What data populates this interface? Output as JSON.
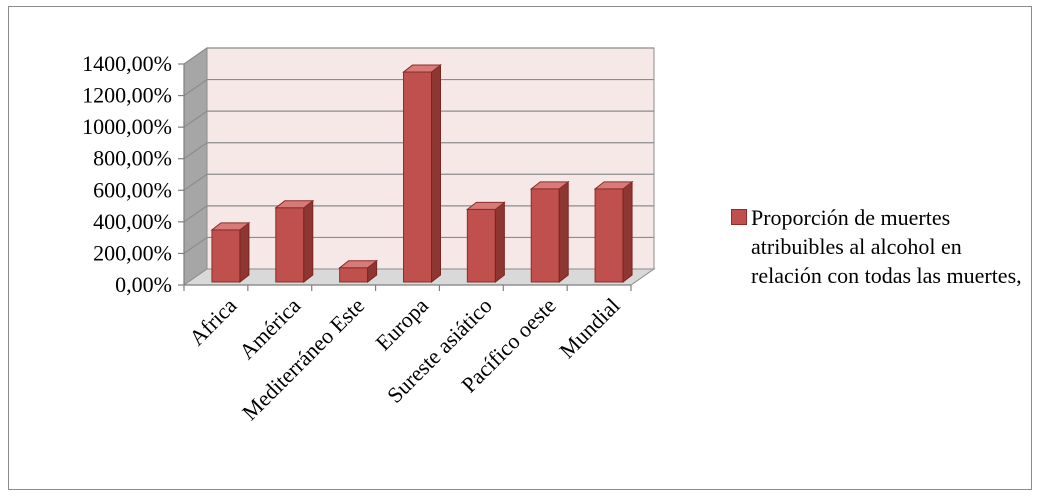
{
  "chart_data": {
    "type": "bar",
    "title": "",
    "xlabel": "",
    "ylabel": "",
    "categories": [
      "Africa",
      "América",
      "Mediterráneo Este",
      "Europa",
      "Sureste asiático",
      "Pacífico oeste",
      "Mundial"
    ],
    "series": [
      {
        "name": "Proporción de muertes atribuibles al alcohol en relación con todas las muertes,",
        "values": [
          330,
          470,
          90,
          1330,
          460,
          590,
          590
        ]
      }
    ],
    "ylim": [
      0,
      1400
    ],
    "yticks": [
      "0,00%",
      "200,00%",
      "400,00%",
      "600,00%",
      "800,00%",
      "1000,00%",
      "1200,00%",
      "1400,00%"
    ],
    "grid": true,
    "legend_position": "right",
    "colors": {
      "bar_front": "#c0504d",
      "bar_side": "#8e3632",
      "bar_top": "#d87a77",
      "wall": "#f7e8e8",
      "side_wall": "#a6a6a6",
      "floor": "#d9d9d9"
    }
  }
}
